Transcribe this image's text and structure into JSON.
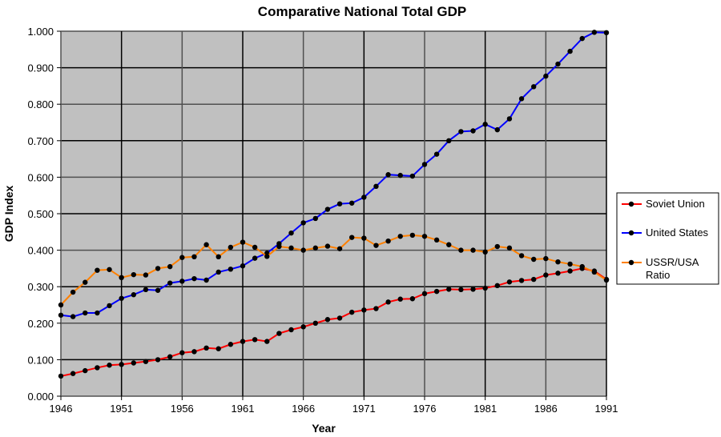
{
  "chart_data": {
    "type": "line",
    "title": "Comparative National Total GDP",
    "xlabel": "Year",
    "ylabel": "GDP Index",
    "xlim": [
      1946,
      1991
    ],
    "ylim": [
      0,
      1
    ],
    "x_ticks": [
      "1946",
      "1951",
      "1956",
      "1961",
      "1966",
      "1971",
      "1976",
      "1981",
      "1986",
      "1991"
    ],
    "y_ticks": [
      "0.000",
      "0.100",
      "0.200",
      "0.300",
      "0.400",
      "0.500",
      "0.600",
      "0.700",
      "0.800",
      "0.900",
      "1.000"
    ],
    "grid": true,
    "plot_background": "#c0c0c0",
    "legend_position": "right",
    "x_start": 1946,
    "series": [
      {
        "name": "Soviet Union",
        "color": "#ff0000",
        "values": [
          0.055,
          0.062,
          0.07,
          0.078,
          0.085,
          0.087,
          0.091,
          0.095,
          0.1,
          0.108,
          0.119,
          0.122,
          0.132,
          0.13,
          0.142,
          0.15,
          0.155,
          0.15,
          0.172,
          0.182,
          0.19,
          0.2,
          0.21,
          0.214,
          0.23,
          0.236,
          0.24,
          0.258,
          0.266,
          0.267,
          0.281,
          0.287,
          0.293,
          0.292,
          0.293,
          0.296,
          0.303,
          0.313,
          0.317,
          0.32,
          0.332,
          0.337,
          0.343,
          0.35,
          0.343,
          0.32
        ]
      },
      {
        "name": "United States",
        "color": "#0000ff",
        "values": [
          0.222,
          0.218,
          0.228,
          0.228,
          0.248,
          0.268,
          0.278,
          0.292,
          0.29,
          0.31,
          0.315,
          0.322,
          0.318,
          0.34,
          0.348,
          0.357,
          0.378,
          0.392,
          0.418,
          0.447,
          0.475,
          0.487,
          0.512,
          0.527,
          0.529,
          0.545,
          0.575,
          0.607,
          0.605,
          0.603,
          0.635,
          0.663,
          0.7,
          0.725,
          0.727,
          0.745,
          0.73,
          0.76,
          0.815,
          0.848,
          0.877,
          0.91,
          0.945,
          0.98,
          0.997,
          0.996
        ]
      },
      {
        "name": "USSR/USA Ratio",
        "color": "#ff8000",
        "values": [
          0.25,
          0.285,
          0.312,
          0.345,
          0.347,
          0.325,
          0.333,
          0.332,
          0.35,
          0.355,
          0.38,
          0.382,
          0.415,
          0.382,
          0.408,
          0.422,
          0.408,
          0.383,
          0.41,
          0.406,
          0.4,
          0.406,
          0.411,
          0.404,
          0.435,
          0.433,
          0.413,
          0.425,
          0.438,
          0.441,
          0.438,
          0.428,
          0.415,
          0.4,
          0.4,
          0.395,
          0.41,
          0.406,
          0.385,
          0.375,
          0.377,
          0.368,
          0.362,
          0.355,
          0.34,
          0.318
        ]
      }
    ]
  }
}
